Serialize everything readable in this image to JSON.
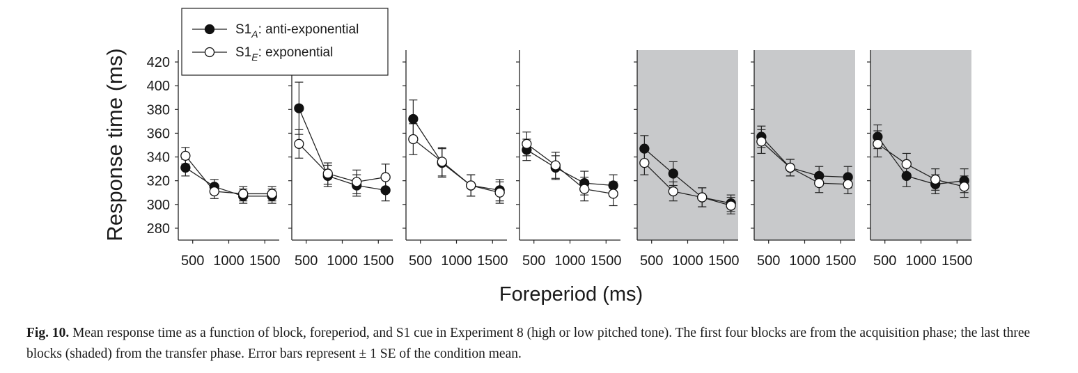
{
  "figure": {
    "caption_label": "Fig. 10.",
    "caption_text": "Mean response time as a function of block, foreperiod, and S1 cue in Experiment 8 (high or low pitched tone). The first four blocks are from the acquisition phase; the last three blocks (shaded) from the transfer phase. Error bars represent ± 1 SE of the condition mean."
  },
  "colors": {
    "shade": "#c8c9cb",
    "line": "#222222",
    "filled_marker": "#111111",
    "open_marker": "#ffffff"
  },
  "chart_data": {
    "type": "line",
    "ylabel": "Response time (ms)",
    "xlabel": "Foreperiod (ms)",
    "ylim": [
      270,
      430
    ],
    "xlim": [
      300,
      1700
    ],
    "y_ticks": [
      280,
      300,
      320,
      340,
      360,
      380,
      400,
      420
    ],
    "x_ticks": [
      500,
      1000,
      1500
    ],
    "x_tick_labels": [
      "500",
      "1000",
      "1500"
    ],
    "x": [
      400,
      800,
      1200,
      1600
    ],
    "legend": {
      "placement": "top-left",
      "entries": [
        {
          "main": "S1",
          "sub": "A",
          "rest": ": anti-exponential",
          "marker": "filled"
        },
        {
          "main": "S1",
          "sub": "E",
          "rest": ": exponential",
          "marker": "open"
        }
      ]
    },
    "panels": [
      {
        "block": 1,
        "shaded": false,
        "series": [
          {
            "marker": "filled",
            "values": [
              331,
              315,
              307,
              307
            ],
            "se": [
              7,
              6,
              6,
              6
            ]
          },
          {
            "marker": "open",
            "values": [
              341,
              311,
              309,
              309
            ],
            "se": [
              7,
              6,
              6,
              6
            ]
          }
        ]
      },
      {
        "block": 2,
        "shaded": false,
        "series": [
          {
            "marker": "filled",
            "values": [
              381,
              324,
              316,
              312
            ],
            "se": [
              22,
              9,
              9,
              9
            ]
          },
          {
            "marker": "open",
            "values": [
              351,
              326,
              319,
              323
            ],
            "se": [
              12,
              9,
              10,
              11
            ]
          }
        ]
      },
      {
        "block": 3,
        "shaded": false,
        "series": [
          {
            "marker": "filled",
            "values": [
              372,
              335,
              316,
              312
            ],
            "se": [
              16,
              12,
              9,
              9
            ]
          },
          {
            "marker": "open",
            "values": [
              355,
              336,
              316,
              310
            ],
            "se": [
              13,
              12,
              9,
              9
            ]
          }
        ]
      },
      {
        "block": 4,
        "shaded": false,
        "series": [
          {
            "marker": "filled",
            "values": [
              346,
              331,
              318,
              316
            ],
            "se": [
              9,
              10,
              10,
              9
            ]
          },
          {
            "marker": "open",
            "values": [
              351,
              333,
              313,
              309
            ],
            "se": [
              10,
              11,
              10,
              10
            ]
          }
        ]
      },
      {
        "block": 5,
        "shaded": true,
        "series": [
          {
            "marker": "filled",
            "values": [
              347,
              326,
              306,
              301
            ],
            "se": [
              11,
              10,
              8,
              7
            ]
          },
          {
            "marker": "open",
            "values": [
              335,
              311,
              306,
              299
            ],
            "se": [
              10,
              8,
              8,
              7
            ]
          }
        ]
      },
      {
        "block": 6,
        "shaded": true,
        "series": [
          {
            "marker": "filled",
            "values": [
              357,
              331,
              324,
              323
            ],
            "se": [
              9,
              7,
              8,
              9
            ]
          },
          {
            "marker": "open",
            "values": [
              353,
              331,
              318,
              317
            ],
            "se": [
              10,
              7,
              8,
              8
            ]
          }
        ]
      },
      {
        "block": 7,
        "shaded": true,
        "series": [
          {
            "marker": "filled",
            "values": [
              357,
              324,
              317,
              320
            ],
            "se": [
              10,
              9,
              8,
              10
            ]
          },
          {
            "marker": "open",
            "values": [
              351,
              334,
              321,
              315
            ],
            "se": [
              11,
              9,
              9,
              9
            ]
          }
        ]
      }
    ]
  }
}
